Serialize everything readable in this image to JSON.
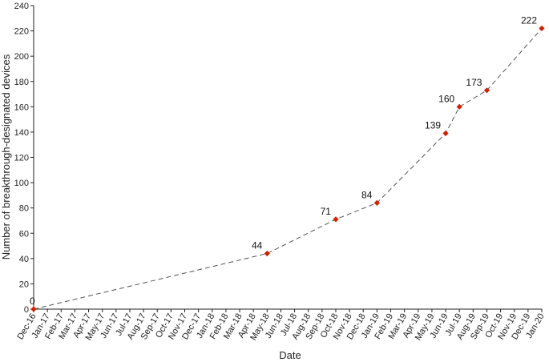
{
  "chart_data": {
    "type": "line",
    "xlabel": "Date",
    "ylabel": "Number of breakthrough-designated devices",
    "ylim": [
      0,
      240
    ],
    "yticks": [
      0,
      20,
      40,
      60,
      80,
      100,
      120,
      140,
      160,
      180,
      200,
      220,
      240
    ],
    "x_tick_labels": [
      "Dec-16",
      "Jan-17",
      "Feb-17",
      "Mar-17",
      "Apr-17",
      "May-17",
      "Jun-17",
      "Jul-17",
      "Aug-17",
      "Sep-17",
      "Oct-17",
      "Nov-17",
      "Dec-17",
      "Jan-18",
      "Feb-18",
      "Mar-18",
      "Apr-18",
      "May-18",
      "Jun-18",
      "Jul-18",
      "Aug-18",
      "Sep-18",
      "Oct-18",
      "Nov-18",
      "Dec-18",
      "Jan-19",
      "Feb-19",
      "Mar-19",
      "Apr-19",
      "May-19",
      "Jun-19",
      "Jul-19",
      "Aug-19",
      "Sep-19",
      "Oct-19",
      "Nov-19",
      "Dec-19",
      "Jan-20"
    ],
    "points": [
      {
        "x": "Dec-16",
        "y": 0,
        "label": "0"
      },
      {
        "x": "May-18",
        "y": 44,
        "label": "44"
      },
      {
        "x": "Oct-18",
        "y": 71,
        "label": "71"
      },
      {
        "x": "Jan-19",
        "y": 84,
        "label": "84"
      },
      {
        "x": "Jun-19",
        "y": 139,
        "label": "139"
      },
      {
        "x": "Jul-19",
        "y": 160,
        "label": "160"
      },
      {
        "x": "Sep-19",
        "y": 173,
        "label": "173"
      },
      {
        "x": "Jan-20",
        "y": 222,
        "label": "222"
      }
    ],
    "line_style": "dashed",
    "line_color": "#555555",
    "marker_color": "#cc2200",
    "marker": "diamond",
    "grid": false
  }
}
